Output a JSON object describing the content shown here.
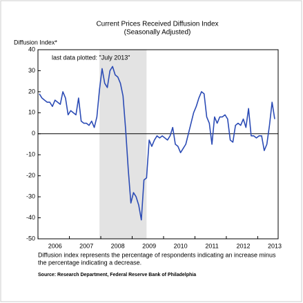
{
  "chart_data": {
    "type": "line",
    "title": "Current Prices Received Diffusion Index",
    "subtitle": "(Seasonally Adjusted)",
    "y_label": "Diffusion Index*",
    "annotation": "last data plotted: \"July 2013\"",
    "footnote": [
      "Diffusion index represents the percentage of respondents indicating an increase minus",
      "the percentage indicating a decrease."
    ],
    "source": "Source: Research Department, Federal Reserve Bank of Philadelphia",
    "categories": [
      null,
      null,
      null,
      null,
      null,
      null,
      "2006",
      null,
      null,
      null,
      null,
      null,
      null,
      null,
      null,
      null,
      null,
      null,
      "2007",
      null,
      null,
      null,
      null,
      null,
      null,
      null,
      null,
      null,
      null,
      null,
      "2008",
      null,
      null,
      null,
      null,
      null,
      null,
      null,
      null,
      null,
      null,
      null,
      "2009",
      null,
      null,
      null,
      null,
      null,
      null,
      null,
      null,
      null,
      null,
      null,
      "2010",
      null,
      null,
      null,
      null,
      null,
      null,
      null,
      null,
      null,
      null,
      null,
      "2011",
      null,
      null,
      null,
      null,
      null,
      null,
      null,
      null,
      null,
      null,
      null,
      "2012",
      null,
      null,
      null,
      null,
      null,
      null,
      null,
      null,
      null,
      null,
      null,
      "2013"
    ],
    "values": [
      19,
      17,
      16,
      15,
      15,
      13,
      16,
      15,
      14,
      20,
      17,
      9,
      11,
      10,
      9,
      17,
      6,
      5,
      5,
      4,
      6,
      3,
      8,
      21,
      31,
      24,
      22,
      30,
      32,
      28,
      27,
      24,
      18,
      2,
      -17,
      -33,
      -28,
      -30,
      -34,
      -41,
      -22,
      -21,
      -3,
      -6,
      -3,
      -1,
      -2,
      -1,
      -2,
      -3,
      -1,
      3,
      -5,
      -6,
      -9,
      -7,
      -5,
      0,
      5,
      10,
      13,
      17,
      20,
      19,
      8,
      5,
      -5,
      8,
      5,
      8,
      8,
      9,
      7,
      -3,
      -4,
      4,
      5,
      4,
      7,
      3,
      12,
      -1,
      -1,
      -2,
      -1,
      -1,
      -8,
      -5,
      4,
      15,
      7
    ],
    "color": "#2b4bb5",
    "highlight_span": [
      23,
      41
    ],
    "zero_line": true,
    "ylim": [
      -50,
      40
    ],
    "yticks": [
      -50,
      -40,
      -30,
      -20,
      -10,
      0,
      10,
      20,
      30,
      40
    ]
  }
}
